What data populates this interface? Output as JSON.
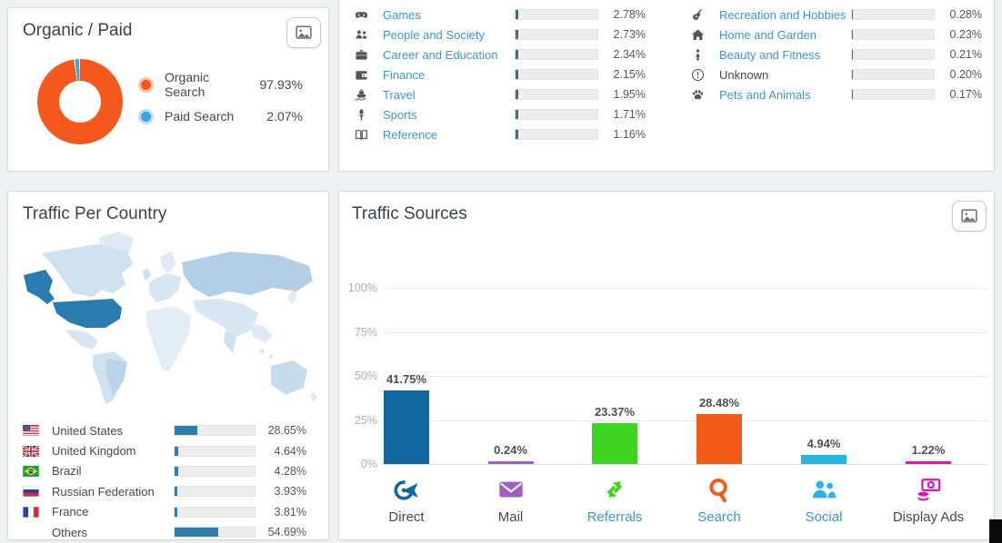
{
  "organic_paid": {
    "title": "Organic / Paid",
    "export_icon": "image-icon",
    "legend": [
      {
        "label": "Organic Search",
        "value": 97.93,
        "display": "97.93%",
        "color": "#f4581c",
        "halo": "#fbc4a8"
      },
      {
        "label": "Paid Search",
        "value": 2.07,
        "display": "2.07%",
        "color": "#3fa3dc",
        "halo": "#b9dff4"
      }
    ]
  },
  "categories": {
    "left": [
      {
        "icon": "games-icon",
        "label": "Games",
        "value": 2.78,
        "display": "2.78%",
        "link": true
      },
      {
        "icon": "people-and-society-icon",
        "label": "People and Society",
        "value": 2.73,
        "display": "2.73%",
        "link": true
      },
      {
        "icon": "career-and-education-icon",
        "label": "Career and Education",
        "value": 2.34,
        "display": "2.34%",
        "link": true
      },
      {
        "icon": "finance-icon",
        "label": "Finance",
        "value": 2.15,
        "display": "2.15%",
        "link": true
      },
      {
        "icon": "travel-icon",
        "label": "Travel",
        "value": 1.95,
        "display": "1.95%",
        "link": true
      },
      {
        "icon": "sports-icon",
        "label": "Sports",
        "value": 1.71,
        "display": "1.71%",
        "link": true
      },
      {
        "icon": "reference-icon",
        "label": "Reference",
        "value": 1.16,
        "display": "1.16%",
        "link": true
      }
    ],
    "right": [
      {
        "icon": "recreation-and-hobbies-icon",
        "label": "Recreation and Hobbies",
        "value": 0.28,
        "display": "0.28%",
        "link": true
      },
      {
        "icon": "home-and-garden-icon",
        "label": "Home and Garden",
        "value": 0.23,
        "display": "0.23%",
        "link": true
      },
      {
        "icon": "beauty-and-fitness-icon",
        "label": "Beauty and Fitness",
        "value": 0.21,
        "display": "0.21%",
        "link": true
      },
      {
        "icon": "unknown-icon",
        "label": "Unknown",
        "value": 0.2,
        "display": "0.20%",
        "link": false
      },
      {
        "icon": "pets-and-animals-icon",
        "label": "Pets and Animals",
        "value": 0.17,
        "display": "0.17%",
        "link": true
      }
    ]
  },
  "traffic_country": {
    "title": "Traffic Per Country",
    "rows": [
      {
        "flag": "flag-us",
        "label": "United States",
        "value": 28.65,
        "display": "28.65%"
      },
      {
        "flag": "flag-gb",
        "label": "United Kingdom",
        "value": 4.64,
        "display": "4.64%"
      },
      {
        "flag": "flag-br",
        "label": "Brazil",
        "value": 4.28,
        "display": "4.28%"
      },
      {
        "flag": "flag-ru",
        "label": "Russian Federation",
        "value": 3.93,
        "display": "3.93%"
      },
      {
        "flag": "flag-fr",
        "label": "France",
        "value": 3.81,
        "display": "3.81%"
      },
      {
        "flag": null,
        "label": "Others",
        "value": 54.69,
        "display": "54.69%"
      }
    ]
  },
  "traffic_sources": {
    "title": "Traffic Sources",
    "export_icon": "image-icon",
    "y_ticks": [
      {
        "label": "100%",
        "value": 100
      },
      {
        "label": "75%",
        "value": 75
      },
      {
        "label": "50%",
        "value": 50
      },
      {
        "label": "25%",
        "value": 25
      },
      {
        "label": "0%",
        "value": 0
      }
    ],
    "bars": [
      {
        "icon": "direct-icon",
        "label": "Direct",
        "value": 41.75,
        "display": "41.75%",
        "color": "#11679e",
        "link": false
      },
      {
        "icon": "mail-icon",
        "label": "Mail",
        "value": 0.24,
        "display": "0.24%",
        "color": "#a05fc2",
        "link": false
      },
      {
        "icon": "referrals-icon",
        "label": "Referrals",
        "value": 23.37,
        "display": "23.37%",
        "color": "#41d321",
        "link": true
      },
      {
        "icon": "search-icon",
        "label": "Search",
        "value": 28.48,
        "display": "28.48%",
        "color": "#f45a17",
        "link": true
      },
      {
        "icon": "social-icon",
        "label": "Social",
        "value": 4.94,
        "display": "4.94%",
        "color": "#29b4e8",
        "link": true
      },
      {
        "icon": "display-ads-icon",
        "label": "Display Ads",
        "value": 1.22,
        "display": "1.22%",
        "color": "#dd16b6",
        "link": false
      }
    ]
  },
  "chart_data": [
    {
      "type": "pie",
      "title": "Organic / Paid",
      "labels": [
        "Organic Search",
        "Paid Search"
      ],
      "values": [
        97.93,
        2.07
      ],
      "colors": [
        "#f4581c",
        "#3fa3dc"
      ],
      "legend_position": "right",
      "donut": true
    },
    {
      "type": "bar",
      "title": "Category share",
      "orientation": "horizontal",
      "categories": [
        "Games",
        "People and Society",
        "Career and Education",
        "Finance",
        "Travel",
        "Sports",
        "Reference",
        "Recreation and Hobbies",
        "Home and Garden",
        "Beauty and Fitness",
        "Unknown",
        "Pets and Animals"
      ],
      "values": [
        2.78,
        2.73,
        2.34,
        2.15,
        1.95,
        1.71,
        1.16,
        0.28,
        0.23,
        0.21,
        0.2,
        0.17
      ],
      "xlim": [
        0,
        100
      ]
    },
    {
      "type": "bar",
      "title": "Traffic Per Country",
      "orientation": "horizontal",
      "categories": [
        "United States",
        "United Kingdom",
        "Brazil",
        "Russian Federation",
        "France",
        "Others"
      ],
      "values": [
        28.65,
        4.64,
        4.28,
        3.93,
        3.81,
        54.69
      ],
      "xlim": [
        0,
        100
      ]
    },
    {
      "type": "bar",
      "title": "Traffic Sources",
      "categories": [
        "Direct",
        "Mail",
        "Referrals",
        "Search",
        "Social",
        "Display Ads"
      ],
      "values": [
        41.75,
        0.24,
        23.37,
        28.48,
        4.94,
        1.22
      ],
      "ylim": [
        0,
        100
      ],
      "yticks": [
        0,
        25,
        50,
        75,
        100
      ],
      "grid": true,
      "bar_colors": [
        "#11679e",
        "#a05fc2",
        "#41d321",
        "#f45a17",
        "#29b4e8",
        "#dd16b6"
      ]
    }
  ]
}
